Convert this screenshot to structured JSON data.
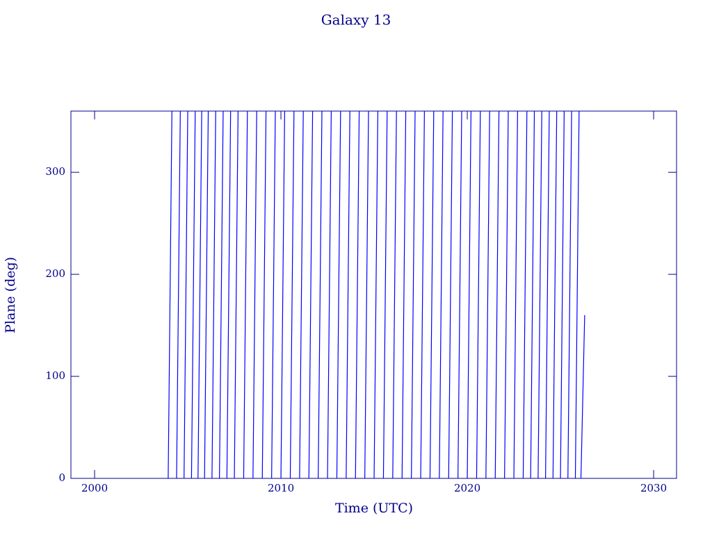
{
  "chart_data": {
    "type": "line",
    "title": "Galaxy 13",
    "x_label": "Time (UTC)",
    "y_label": "Plane (deg)",
    "xlim": [
      1998.73,
      2031.23
    ],
    "xticks": [
      2000,
      2010,
      2020,
      2030
    ],
    "ylim": [
      0,
      360
    ],
    "yticks": [
      0,
      100,
      200,
      300
    ],
    "series": [
      {
        "color": "#0000ff",
        "x": [
          2003.95,
          2004.15,
          2004.15,
          2004.4,
          2004.6,
          2004.6,
          2004.8,
          2005.0,
          2005.0,
          2005.2,
          2005.4,
          2005.4,
          2005.55,
          2005.75,
          2005.75,
          2005.9,
          2006.1,
          2006.1,
          2006.3,
          2006.5,
          2006.5,
          2006.7,
          2006.9,
          2006.9,
          2007.1,
          2007.3,
          2007.3,
          2007.5,
          2007.7,
          2007.7,
          2008.0,
          2008.2,
          2008.2,
          2008.5,
          2008.7,
          2008.7,
          2009.0,
          2009.2,
          2009.2,
          2009.5,
          2009.7,
          2009.7,
          2010.0,
          2010.2,
          2010.2,
          2010.5,
          2010.7,
          2010.7,
          2011.0,
          2011.2,
          2011.2,
          2011.5,
          2011.7,
          2011.7,
          2012.0,
          2012.2,
          2012.2,
          2012.5,
          2012.7,
          2012.7,
          2013.0,
          2013.2,
          2013.2,
          2013.5,
          2013.7,
          2013.7,
          2014.0,
          2014.2,
          2014.2,
          2014.5,
          2014.7,
          2014.7,
          2015.0,
          2015.2,
          2015.2,
          2015.5,
          2015.7,
          2015.7,
          2016.0,
          2016.2,
          2016.2,
          2016.5,
          2016.7,
          2016.7,
          2017.0,
          2017.2,
          2017.2,
          2017.5,
          2017.7,
          2017.7,
          2018.0,
          2018.2,
          2018.2,
          2018.5,
          2018.7,
          2018.7,
          2019.0,
          2019.2,
          2019.2,
          2019.5,
          2019.7,
          2019.7,
          2020.0,
          2020.2,
          2020.2,
          2020.5,
          2020.7,
          2020.7,
          2021.0,
          2021.2,
          2021.2,
          2021.5,
          2021.7,
          2021.7,
          2022.0,
          2022.2,
          2022.2,
          2022.5,
          2022.7,
          2022.7,
          2023.0,
          2023.2,
          2023.2,
          2023.4,
          2023.6,
          2023.6,
          2023.8,
          2024.0,
          2024.0,
          2024.2,
          2024.4,
          2024.4,
          2024.6,
          2024.8,
          2024.8,
          2025.0,
          2025.2,
          2025.2,
          2025.4,
          2025.6,
          2025.6,
          2025.8,
          2026.0,
          2026.0,
          2026.1,
          2026.3
        ],
        "values": [
          0,
          360,
          null,
          0,
          360,
          null,
          0,
          360,
          null,
          0,
          360,
          null,
          0,
          360,
          null,
          0,
          360,
          null,
          0,
          360,
          null,
          0,
          360,
          null,
          0,
          360,
          null,
          0,
          360,
          null,
          0,
          360,
          null,
          0,
          360,
          null,
          0,
          360,
          null,
          0,
          360,
          null,
          0,
          360,
          null,
          0,
          360,
          null,
          0,
          360,
          null,
          0,
          360,
          null,
          0,
          360,
          null,
          0,
          360,
          null,
          0,
          360,
          null,
          0,
          360,
          null,
          0,
          360,
          null,
          0,
          360,
          null,
          0,
          360,
          null,
          0,
          360,
          null,
          0,
          360,
          null,
          0,
          360,
          null,
          0,
          360,
          null,
          0,
          360,
          null,
          0,
          360,
          null,
          0,
          360,
          null,
          0,
          360,
          null,
          0,
          360,
          null,
          0,
          360,
          null,
          0,
          360,
          null,
          0,
          360,
          null,
          0,
          360,
          null,
          0,
          360,
          null,
          0,
          360,
          null,
          0,
          360,
          null,
          0,
          360,
          null,
          0,
          360,
          null,
          0,
          360,
          null,
          0,
          360,
          null,
          0,
          360,
          null,
          0,
          360,
          null,
          0,
          360,
          null,
          0,
          160
        ]
      }
    ]
  }
}
